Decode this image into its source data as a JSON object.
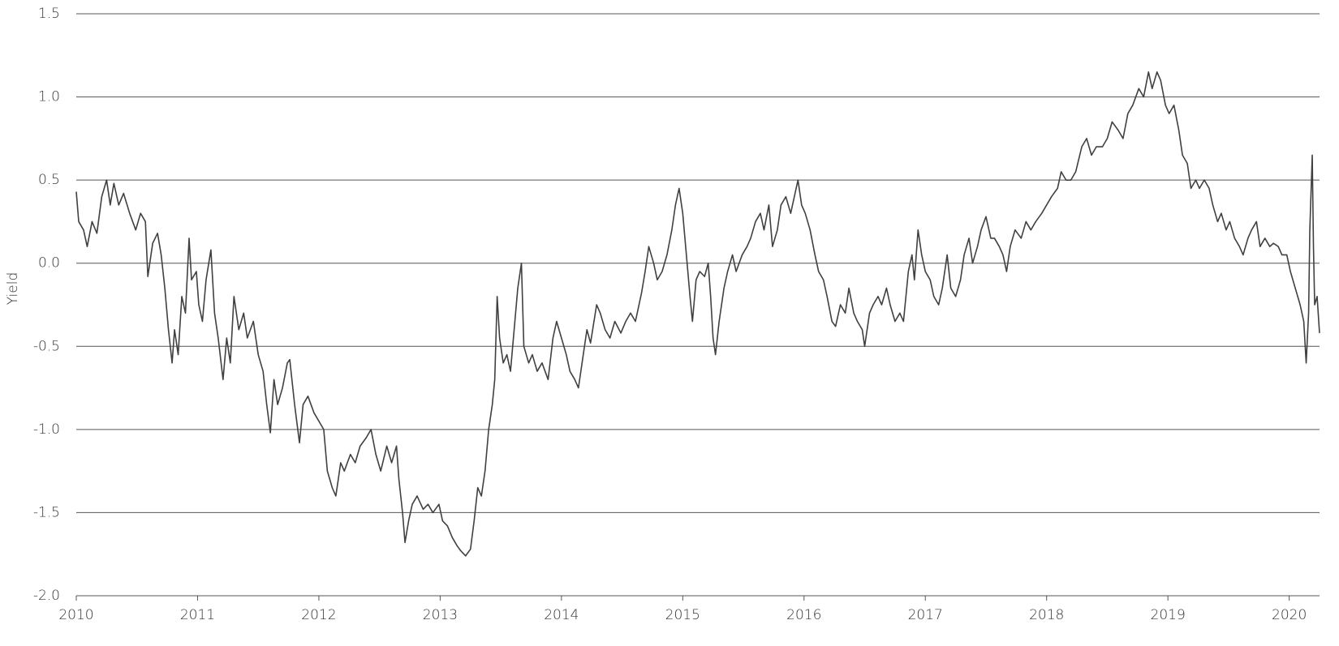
{
  "chart_data": {
    "type": "line",
    "y_label": "Yield",
    "xlim": [
      2010,
      2020.25
    ],
    "xticks": [
      2010,
      2011,
      2012,
      2013,
      2014,
      2015,
      2016,
      2017,
      2018,
      2019,
      2020
    ],
    "ylim": [
      -2,
      1.5
    ],
    "yticks": [
      1.5,
      {
        "value": 1,
        "label": "1.0"
      },
      0.5,
      {
        "value": 0,
        "label": "0.0"
      },
      -0.5,
      {
        "value": -1,
        "label": "-1.0"
      },
      -1.5,
      {
        "value": -2,
        "label": "-2.0"
      }
    ],
    "grid": true,
    "series": [
      {
        "color": "#404040",
        "x": [
          2010.0,
          2010.02,
          2010.06,
          2010.09,
          2010.13,
          2010.17,
          2010.21,
          2010.25,
          2010.28,
          2010.31,
          2010.35,
          2010.39,
          2010.44,
          2010.49,
          2010.53,
          2010.57,
          2010.59,
          2010.63,
          2010.67,
          2010.7,
          2010.73,
          2010.76,
          2010.79,
          2010.81,
          2010.84,
          2010.87,
          2010.9,
          2010.93,
          2010.95,
          2010.99,
          2011.01,
          2011.04,
          2011.07,
          2011.11,
          2011.14,
          2011.17,
          2011.21,
          2011.24,
          2011.27,
          2011.3,
          2011.34,
          2011.38,
          2011.41,
          2011.46,
          2011.5,
          2011.54,
          2011.57,
          2011.6,
          2011.63,
          2011.66,
          2011.7,
          2011.74,
          2011.76,
          2011.8,
          2011.84,
          2011.87,
          2011.91,
          2011.96,
          2012.0,
          2012.04,
          2012.07,
          2012.11,
          2012.14,
          2012.18,
          2012.21,
          2012.26,
          2012.3,
          2012.34,
          2012.39,
          2012.43,
          2012.47,
          2012.51,
          2012.56,
          2012.6,
          2012.64,
          2012.66,
          2012.69,
          2012.71,
          2012.74,
          2012.77,
          2012.81,
          2012.86,
          2012.9,
          2012.94,
          2012.99,
          2013.02,
          2013.06,
          2013.1,
          2013.14,
          2013.17,
          2013.21,
          2013.25,
          2013.28,
          2013.31,
          2013.34,
          2013.37,
          2013.4,
          2013.43,
          2013.45,
          2013.47,
          2013.49,
          2013.52,
          2013.55,
          2013.58,
          2013.61,
          2013.64,
          2013.67,
          2013.69,
          2013.73,
          2013.76,
          2013.8,
          2013.84,
          2013.89,
          2013.93,
          2013.96,
          2014.0,
          2014.04,
          2014.07,
          2014.11,
          2014.14,
          2014.17,
          2014.21,
          2014.24,
          2014.29,
          2014.32,
          2014.36,
          2014.4,
          2014.44,
          2014.49,
          2014.53,
          2014.57,
          2014.61,
          2014.66,
          2014.69,
          2014.72,
          2014.76,
          2014.79,
          2014.83,
          2014.87,
          2014.91,
          2014.94,
          2014.97,
          2015.0,
          2015.03,
          2015.06,
          2015.08,
          2015.11,
          2015.14,
          2015.18,
          2015.21,
          2015.23,
          2015.25,
          2015.27,
          2015.3,
          2015.34,
          2015.37,
          2015.41,
          2015.44,
          2015.49,
          2015.53,
          2015.56,
          2015.6,
          2015.64,
          2015.67,
          2015.71,
          2015.74,
          2015.78,
          2015.81,
          2015.85,
          2015.89,
          2015.92,
          2015.95,
          2015.98,
          2016.01,
          2016.05,
          2016.09,
          2016.12,
          2016.16,
          2016.19,
          2016.23,
          2016.26,
          2016.3,
          2016.34,
          2016.37,
          2016.41,
          2016.44,
          2016.48,
          2016.5,
          2016.54,
          2016.57,
          2016.61,
          2016.64,
          2016.68,
          2016.71,
          2016.75,
          2016.79,
          2016.82,
          2016.86,
          2016.89,
          2016.91,
          2016.94,
          2016.97,
          2017.0,
          2017.04,
          2017.07,
          2017.11,
          2017.14,
          2017.18,
          2017.21,
          2017.25,
          2017.29,
          2017.32,
          2017.36,
          2017.39,
          2017.43,
          2017.46,
          2017.5,
          2017.54,
          2017.57,
          2017.61,
          2017.64,
          2017.67,
          2017.7,
          2017.74,
          2017.79,
          2017.83,
          2017.87,
          2017.91,
          2017.96,
          2018.0,
          2018.04,
          2018.09,
          2018.12,
          2018.16,
          2018.2,
          2018.24,
          2018.29,
          2018.33,
          2018.37,
          2018.41,
          2018.46,
          2018.5,
          2018.54,
          2018.59,
          2018.63,
          2018.67,
          2018.71,
          2018.76,
          2018.8,
          2018.84,
          2018.87,
          2018.91,
          2018.94,
          2018.98,
          2019.01,
          2019.05,
          2019.09,
          2019.12,
          2019.16,
          2019.19,
          2019.23,
          2019.26,
          2019.3,
          2019.34,
          2019.37,
          2019.41,
          2019.44,
          2019.48,
          2019.51,
          2019.55,
          2019.59,
          2019.62,
          2019.66,
          2019.69,
          2019.73,
          2019.76,
          2019.8,
          2019.84,
          2019.87,
          2019.91,
          2019.94,
          2019.98,
          2020.01,
          2020.05,
          2020.09,
          2020.12,
          2020.14,
          2020.16,
          2020.17,
          2020.19,
          2020.2,
          2020.21,
          2020.23,
          2020.25
        ],
        "values": [
          0.43,
          0.25,
          0.2,
          0.1,
          0.25,
          0.18,
          0.4,
          0.5,
          0.35,
          0.48,
          0.35,
          0.42,
          0.3,
          0.2,
          0.3,
          0.25,
          -0.08,
          0.12,
          0.18,
          0.05,
          -0.15,
          -0.4,
          -0.6,
          -0.4,
          -0.55,
          -0.2,
          -0.3,
          0.15,
          -0.1,
          -0.05,
          -0.25,
          -0.35,
          -0.1,
          0.08,
          -0.3,
          -0.45,
          -0.7,
          -0.45,
          -0.6,
          -0.2,
          -0.4,
          -0.3,
          -0.45,
          -0.35,
          -0.55,
          -0.65,
          -0.85,
          -1.02,
          -0.7,
          -0.85,
          -0.75,
          -0.6,
          -0.58,
          -0.85,
          -1.08,
          -0.85,
          -0.8,
          -0.9,
          -0.95,
          -1.0,
          -1.25,
          -1.35,
          -1.4,
          -1.2,
          -1.25,
          -1.15,
          -1.2,
          -1.1,
          -1.05,
          -1.0,
          -1.15,
          -1.25,
          -1.1,
          -1.2,
          -1.1,
          -1.3,
          -1.5,
          -1.68,
          -1.55,
          -1.45,
          -1.4,
          -1.48,
          -1.45,
          -1.5,
          -1.45,
          -1.55,
          -1.58,
          -1.65,
          -1.7,
          -1.73,
          -1.76,
          -1.72,
          -1.55,
          -1.35,
          -1.4,
          -1.25,
          -1.0,
          -0.85,
          -0.7,
          -0.2,
          -0.45,
          -0.6,
          -0.55,
          -0.65,
          -0.4,
          -0.15,
          0.0,
          -0.5,
          -0.6,
          -0.55,
          -0.65,
          -0.6,
          -0.7,
          -0.45,
          -0.35,
          -0.45,
          -0.55,
          -0.65,
          -0.7,
          -0.75,
          -0.6,
          -0.4,
          -0.48,
          -0.25,
          -0.3,
          -0.4,
          -0.45,
          -0.35,
          -0.42,
          -0.35,
          -0.3,
          -0.35,
          -0.18,
          -0.05,
          0.1,
          0.0,
          -0.1,
          -0.05,
          0.05,
          0.2,
          0.35,
          0.45,
          0.3,
          0.05,
          -0.2,
          -0.35,
          -0.1,
          -0.05,
          -0.08,
          0.0,
          -0.2,
          -0.45,
          -0.55,
          -0.35,
          -0.15,
          -0.05,
          0.05,
          -0.05,
          0.05,
          0.1,
          0.15,
          0.25,
          0.3,
          0.2,
          0.35,
          0.1,
          0.2,
          0.35,
          0.4,
          0.3,
          0.4,
          0.5,
          0.35,
          0.3,
          0.2,
          0.05,
          -0.05,
          -0.1,
          -0.2,
          -0.35,
          -0.38,
          -0.25,
          -0.3,
          -0.15,
          -0.3,
          -0.35,
          -0.4,
          -0.5,
          -0.3,
          -0.25,
          -0.2,
          -0.25,
          -0.15,
          -0.25,
          -0.35,
          -0.3,
          -0.35,
          -0.05,
          0.05,
          -0.1,
          0.2,
          0.05,
          -0.05,
          -0.1,
          -0.2,
          -0.25,
          -0.15,
          0.05,
          -0.15,
          -0.2,
          -0.1,
          0.05,
          0.15,
          0.0,
          0.1,
          0.2,
          0.28,
          0.15,
          0.15,
          0.1,
          0.05,
          -0.05,
          0.1,
          0.2,
          0.15,
          0.25,
          0.2,
          0.25,
          0.3,
          0.35,
          0.4,
          0.45,
          0.55,
          0.5,
          0.5,
          0.55,
          0.7,
          0.75,
          0.65,
          0.7,
          0.7,
          0.75,
          0.85,
          0.8,
          0.75,
          0.9,
          0.95,
          1.05,
          1.0,
          1.15,
          1.05,
          1.15,
          1.1,
          0.95,
          0.9,
          0.95,
          0.8,
          0.65,
          0.6,
          0.45,
          0.5,
          0.45,
          0.5,
          0.45,
          0.35,
          0.25,
          0.3,
          0.2,
          0.25,
          0.15,
          0.1,
          0.05,
          0.15,
          0.2,
          0.25,
          0.1,
          0.15,
          0.1,
          0.12,
          0.1,
          0.05,
          0.05,
          -0.05,
          -0.15,
          -0.25,
          -0.35,
          -0.6,
          -0.3,
          0.2,
          0.65,
          0.1,
          -0.25,
          -0.2,
          -0.42
        ]
      }
    ]
  }
}
